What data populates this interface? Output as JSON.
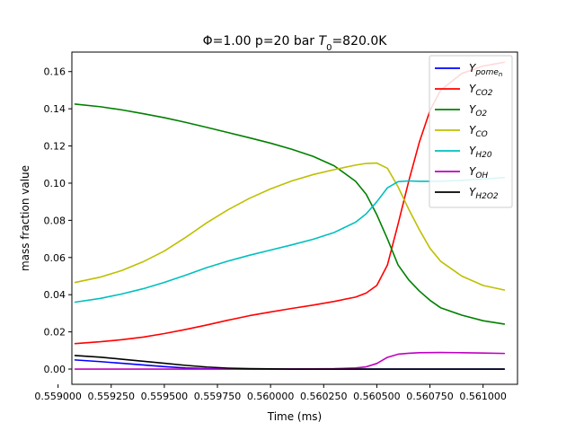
{
  "chart_data": {
    "type": "line",
    "title_parts": {
      "main": "Φ=1.00 p=20 bar ",
      "T": "T",
      "T_sub": "0",
      "tail": "=820.0K"
    },
    "xlabel": "Time (ms)",
    "ylabel": "mass fraction value",
    "xlim": [
      0.559065,
      0.561162
    ],
    "ylim": [
      -0.0082,
      0.1705
    ],
    "xticks": [
      0.559,
      0.55925,
      0.5595,
      0.55975,
      0.56,
      0.56025,
      0.5605,
      0.56075,
      0.561
    ],
    "xtick_labels": [
      "0.559000",
      "0.559250",
      "0.559500",
      "0.559750",
      "0.560000",
      "0.560250",
      "0.560500",
      "0.560750",
      "0.561000"
    ],
    "yticks": [
      0.0,
      0.02,
      0.04,
      0.06,
      0.08,
      0.1,
      0.12,
      0.14,
      0.16
    ],
    "ytick_labels": [
      "0.00",
      "0.02",
      "0.04",
      "0.06",
      "0.08",
      "0.10",
      "0.12",
      "0.14",
      "0.16"
    ],
    "grid": false,
    "legend_position": "top-right",
    "series": [
      {
        "name": "Y_{pome_n}",
        "label_base": "Y",
        "label_sub": "pome",
        "label_subsub": "n",
        "color": "#0000ff",
        "x": [
          0.55908,
          0.5592,
          0.5593,
          0.5594,
          0.5595,
          0.5596,
          0.5597,
          0.5598,
          0.5599,
          0.56,
          0.5601,
          0.5602,
          0.5603,
          0.5604,
          0.5605,
          0.5606,
          0.5607,
          0.5608,
          0.5609,
          0.5611
        ],
        "y": [
          0.0049,
          0.004,
          0.0031,
          0.0022,
          0.0013,
          0.0006,
          0.0002,
          0.0001,
          0.0,
          0.0,
          0.0,
          0.0,
          0.0,
          0.0,
          0.0,
          0.0,
          0.0,
          0.0,
          0.0,
          0.0
        ]
      },
      {
        "name": "Y_{CO2}",
        "label_base": "Y",
        "label_sub": "CO2",
        "color": "#ff0000",
        "x": [
          0.55908,
          0.5592,
          0.5593,
          0.5594,
          0.5595,
          0.5596,
          0.5597,
          0.5598,
          0.5599,
          0.56,
          0.5601,
          0.5602,
          0.5603,
          0.5604,
          0.56045,
          0.5605,
          0.56055,
          0.5606,
          0.56065,
          0.5607,
          0.56075,
          0.5608,
          0.5609,
          0.561,
          0.5611
        ],
        "y": [
          0.0137,
          0.0147,
          0.0158,
          0.0172,
          0.0191,
          0.0213,
          0.0237,
          0.0263,
          0.0287,
          0.0307,
          0.0326,
          0.0344,
          0.0364,
          0.0387,
          0.0409,
          0.045,
          0.056,
          0.078,
          0.101,
          0.122,
          0.139,
          0.15,
          0.159,
          0.163,
          0.165
        ]
      },
      {
        "name": "Y_{O2}",
        "label_base": "Y",
        "label_sub": "O2",
        "color": "#008000",
        "x": [
          0.55908,
          0.5592,
          0.5593,
          0.5594,
          0.5595,
          0.5596,
          0.5597,
          0.5598,
          0.5599,
          0.56,
          0.5601,
          0.5602,
          0.5603,
          0.5604,
          0.56045,
          0.5605,
          0.56055,
          0.5606,
          0.56065,
          0.5607,
          0.56075,
          0.5608,
          0.5609,
          0.561,
          0.5611
        ],
        "y": [
          0.1425,
          0.1411,
          0.1394,
          0.1374,
          0.1352,
          0.1327,
          0.13,
          0.1272,
          0.1244,
          0.1215,
          0.1182,
          0.1144,
          0.1093,
          0.101,
          0.094,
          0.083,
          0.07,
          0.056,
          0.048,
          0.042,
          0.037,
          0.033,
          0.029,
          0.026,
          0.0242
        ]
      },
      {
        "name": "Y_{CO}",
        "label_base": "Y",
        "label_sub": "CO",
        "color": "#bfbf00",
        "x": [
          0.55908,
          0.5592,
          0.5593,
          0.5594,
          0.5595,
          0.5596,
          0.5597,
          0.5598,
          0.5599,
          0.56,
          0.5601,
          0.5602,
          0.5603,
          0.5604,
          0.56045,
          0.5605,
          0.56055,
          0.5606,
          0.56065,
          0.5607,
          0.56075,
          0.5608,
          0.5609,
          0.561,
          0.5611
        ],
        "y": [
          0.0466,
          0.0495,
          0.053,
          0.0577,
          0.0635,
          0.0708,
          0.0787,
          0.0857,
          0.0918,
          0.0969,
          0.1012,
          0.1046,
          0.1073,
          0.1097,
          0.1106,
          0.1108,
          0.108,
          0.098,
          0.086,
          0.075,
          0.065,
          0.058,
          0.05,
          0.045,
          0.0425
        ]
      },
      {
        "name": "Y_{H20}",
        "label_base": "Y",
        "label_sub": "H20",
        "color": "#00bfbf",
        "x": [
          0.55908,
          0.5592,
          0.5593,
          0.5594,
          0.5595,
          0.5596,
          0.5597,
          0.5598,
          0.5599,
          0.56,
          0.5601,
          0.5602,
          0.5603,
          0.5604,
          0.56045,
          0.5605,
          0.56055,
          0.5606,
          0.56065,
          0.5607,
          0.5608,
          0.5609,
          0.561,
          0.5611
        ],
        "y": [
          0.036,
          0.038,
          0.0404,
          0.0432,
          0.0466,
          0.0505,
          0.0546,
          0.0581,
          0.0612,
          0.064,
          0.0668,
          0.0698,
          0.0735,
          0.079,
          0.0835,
          0.09,
          0.0975,
          0.1008,
          0.1012,
          0.101,
          0.101,
          0.1015,
          0.1022,
          0.103
        ]
      },
      {
        "name": "Y_{OH}",
        "label_base": "Y",
        "label_sub": "OH",
        "color": "#bf00bf",
        "x": [
          0.55908,
          0.5593,
          0.5596,
          0.5599,
          0.5602,
          0.5603,
          0.5604,
          0.56045,
          0.5605,
          0.56055,
          0.5606,
          0.56065,
          0.5607,
          0.5608,
          0.5609,
          0.561,
          0.5611
        ],
        "y": [
          0.0,
          0.0,
          0.0,
          0.0,
          0.0001,
          0.0002,
          0.0006,
          0.0012,
          0.003,
          0.0063,
          0.008,
          0.0085,
          0.0088,
          0.0089,
          0.0088,
          0.0086,
          0.0084
        ]
      },
      {
        "name": "Y_{H2O2}",
        "label_base": "Y",
        "label_sub": "H2O2",
        "color": "#000000",
        "x": [
          0.55908,
          0.5592,
          0.5593,
          0.5594,
          0.5595,
          0.5596,
          0.5597,
          0.5598,
          0.5599,
          0.56,
          0.5601,
          0.5602,
          0.5605,
          0.5608,
          0.5611
        ],
        "y": [
          0.0073,
          0.0064,
          0.0053,
          0.0042,
          0.0031,
          0.002,
          0.0011,
          0.0005,
          0.0002,
          0.0001,
          0.0,
          0.0,
          0.0,
          0.0,
          0.0
        ]
      }
    ]
  }
}
